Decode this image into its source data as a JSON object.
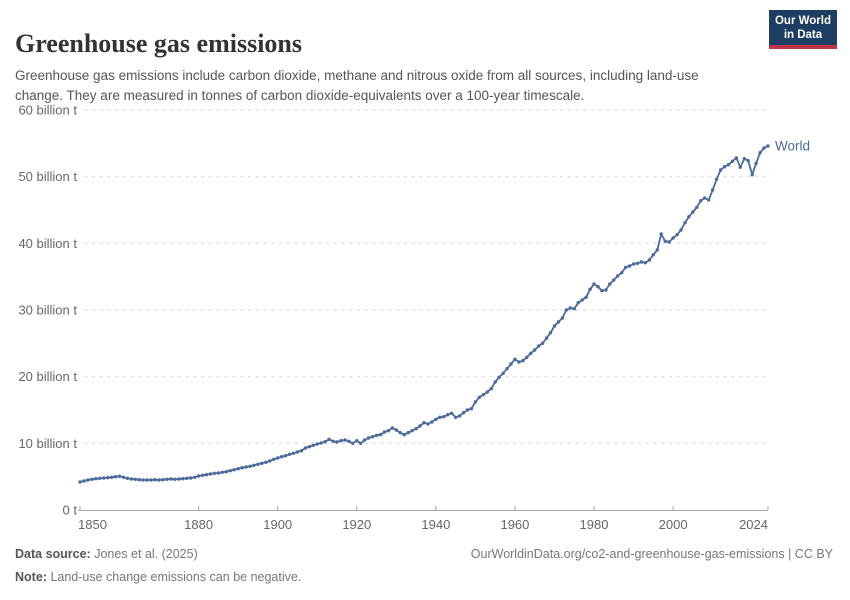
{
  "header": {
    "title": "Greenhouse gas emissions",
    "subtitle": "Greenhouse gas emissions include carbon dioxide, methane and nitrous oxide from all sources, including land-use change. They are measured in tonnes of carbon dioxide-equivalents over a 100-year timescale.",
    "logo": {
      "line1": "Our World",
      "line2": "in Data",
      "bg_color": "#1d3d63",
      "accent_color": "#c0344a"
    }
  },
  "chart_data": {
    "type": "line",
    "title": "Greenhouse gas emissions",
    "xlabel": "",
    "ylabel": "",
    "xlim": [
      1850,
      2024
    ],
    "ylim": [
      0,
      60
    ],
    "grid": "horizontal-dashed",
    "legend_position": "end-of-line",
    "x_ticks": [
      1850,
      1880,
      1900,
      1920,
      1940,
      1960,
      1980,
      2000,
      2024
    ],
    "y_ticks": [
      {
        "v": 0,
        "label": "0 t"
      },
      {
        "v": 10,
        "label": "10 billion t"
      },
      {
        "v": 20,
        "label": "20 billion t"
      },
      {
        "v": 30,
        "label": "30 billion t"
      },
      {
        "v": 40,
        "label": "40 billion t"
      },
      {
        "v": 50,
        "label": "50 billion t"
      },
      {
        "v": 60,
        "label": "60 billion t"
      }
    ],
    "series": [
      {
        "name": "World",
        "color": "#4C6A9C",
        "unit": "billion t",
        "start_year": 1850,
        "end_year": 2024,
        "values": [
          4.2,
          4.35,
          4.5,
          4.6,
          4.7,
          4.75,
          4.8,
          4.85,
          4.9,
          5.0,
          5.05,
          4.9,
          4.75,
          4.65,
          4.6,
          4.55,
          4.5,
          4.5,
          4.5,
          4.55,
          4.5,
          4.55,
          4.6,
          4.65,
          4.6,
          4.65,
          4.7,
          4.75,
          4.8,
          4.9,
          5.1,
          5.2,
          5.3,
          5.4,
          5.5,
          5.55,
          5.65,
          5.75,
          5.9,
          6.05,
          6.2,
          6.35,
          6.45,
          6.55,
          6.7,
          6.85,
          7.0,
          7.15,
          7.35,
          7.6,
          7.8,
          8.0,
          8.15,
          8.35,
          8.5,
          8.7,
          8.9,
          9.3,
          9.5,
          9.7,
          9.9,
          10.05,
          10.25,
          10.6,
          10.3,
          10.2,
          10.4,
          10.5,
          10.3,
          10.0,
          10.4,
          10.0,
          10.5,
          10.8,
          11.0,
          11.2,
          11.3,
          11.7,
          11.9,
          12.3,
          12.0,
          11.6,
          11.3,
          11.6,
          11.9,
          12.2,
          12.6,
          13.1,
          12.9,
          13.2,
          13.6,
          13.9,
          14.0,
          14.3,
          14.5,
          13.9,
          14.1,
          14.6,
          15.0,
          15.2,
          16.2,
          16.9,
          17.3,
          17.7,
          18.2,
          19.2,
          19.9,
          20.5,
          21.2,
          21.9,
          22.6,
          22.2,
          22.4,
          22.9,
          23.5,
          24.0,
          24.6,
          25.0,
          25.8,
          26.6,
          27.6,
          28.2,
          28.8,
          30.0,
          30.3,
          30.2,
          31.1,
          31.5,
          31.9,
          33.1,
          33.9,
          33.5,
          32.9,
          33.0,
          33.9,
          34.5,
          35.1,
          35.6,
          36.4,
          36.6,
          36.9,
          37.0,
          37.2,
          37.1,
          37.5,
          38.3,
          39.0,
          41.4,
          40.3,
          40.2,
          40.8,
          41.3,
          42.0,
          43.1,
          44.0,
          44.7,
          45.4,
          46.4,
          46.8,
          46.5,
          48.0,
          49.6,
          51.0,
          51.5,
          51.8,
          52.3,
          52.8,
          51.4,
          52.7,
          52.4,
          50.3,
          52.0,
          53.6,
          54.3,
          54.6
        ]
      }
    ]
  },
  "footer": {
    "source_label": "Data source:",
    "source_value": "Jones et al. (2025)",
    "link": "OurWorldinData.org/co2-and-greenhouse-gas-emissions | CC BY",
    "note_label": "Note:",
    "note_value": "Land-use change emissions can be negative."
  }
}
